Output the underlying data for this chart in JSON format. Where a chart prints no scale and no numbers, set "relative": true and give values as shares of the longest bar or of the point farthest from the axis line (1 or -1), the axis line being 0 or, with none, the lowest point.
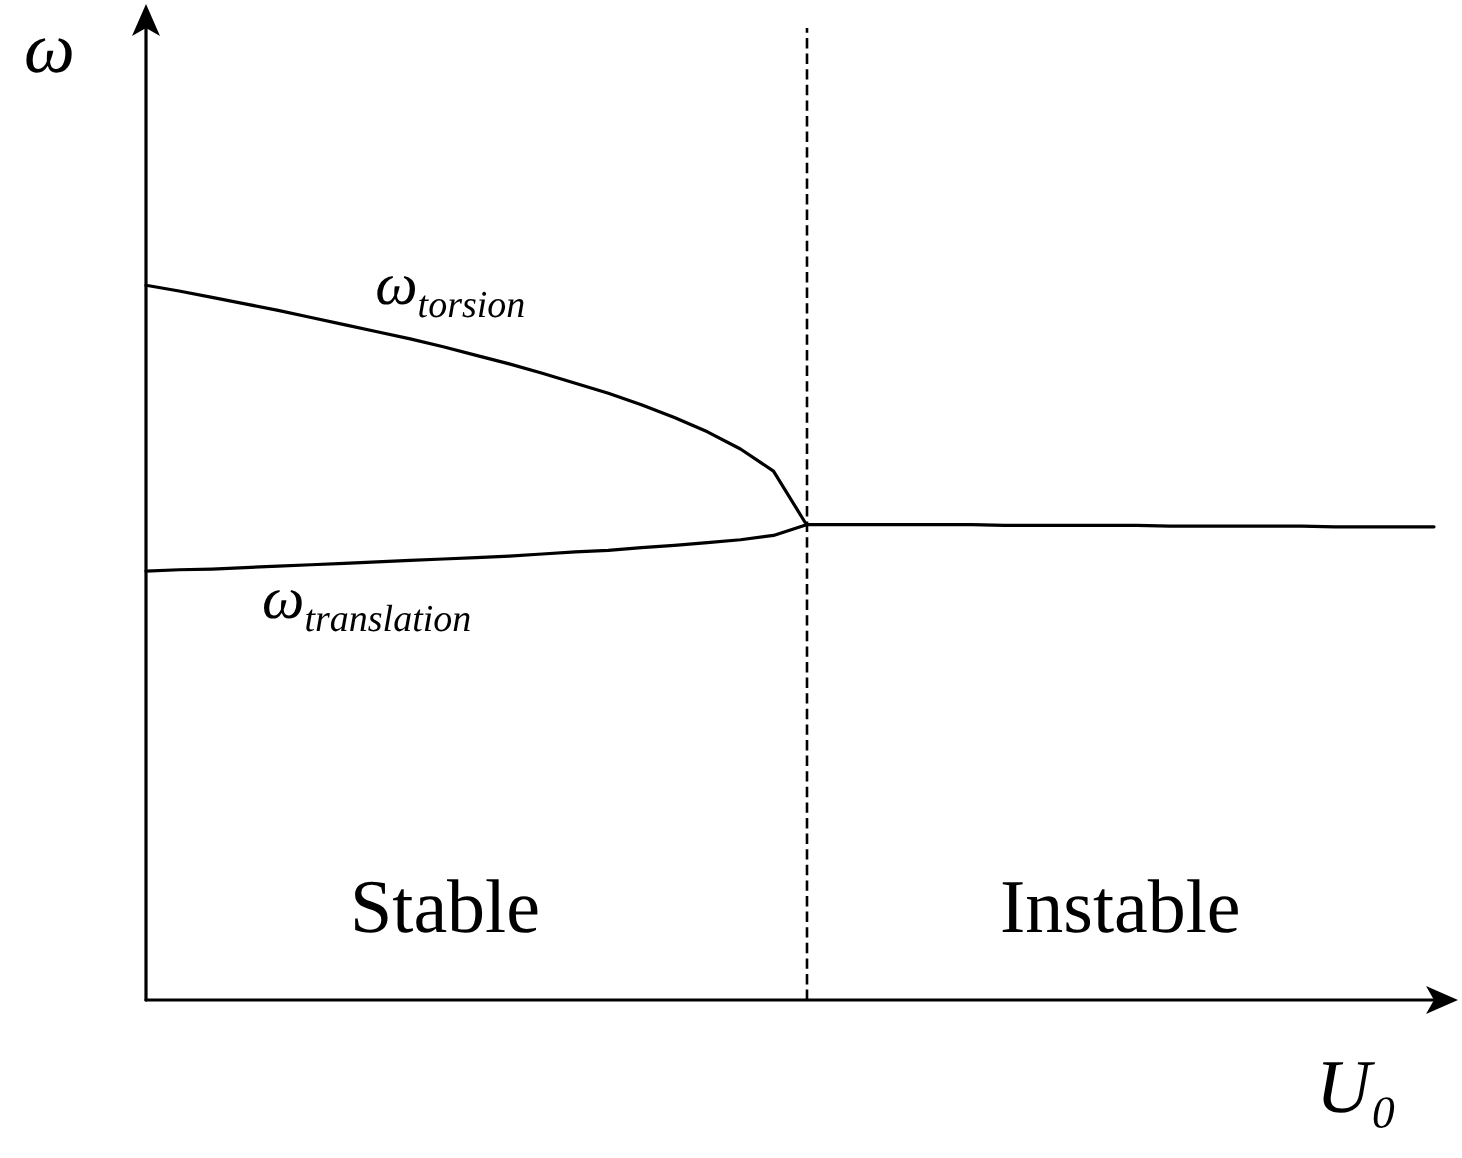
{
  "chart_data": {
    "type": "line",
    "relative": true,
    "xlabel": "U₀",
    "ylabel": "ω",
    "categories": [
      null,
      null,
      null,
      null,
      null,
      null,
      null,
      null,
      null,
      null,
      null,
      null,
      null,
      null,
      null,
      null,
      null,
      null,
      null,
      null,
      null,
      null,
      null,
      null,
      null,
      null,
      null,
      null,
      null,
      null,
      null,
      null,
      null,
      null,
      null,
      null,
      null,
      null,
      null,
      null
    ],
    "series": [
      {
        "name": "ω$_{torsion}$",
        "color": "#000000",
        "values": [
          1.0,
          0.992,
          0.983,
          0.974,
          0.965,
          0.955,
          0.945,
          0.935,
          0.925,
          0.914,
          0.902,
          0.89,
          0.877,
          0.863,
          0.849,
          0.833,
          0.815,
          0.795,
          0.771,
          0.74,
          0.665,
          null,
          null,
          null,
          null,
          null,
          null,
          null,
          null,
          null,
          null,
          null,
          null,
          null,
          null,
          null,
          null,
          null,
          null,
          null
        ]
      },
      {
        "name": "ω$_{translation}$",
        "color": "#000000",
        "values": [
          0.6,
          0.602,
          0.603,
          0.605,
          0.607,
          0.609,
          0.611,
          0.613,
          0.615,
          0.617,
          0.619,
          0.621,
          0.624,
          0.627,
          0.629,
          0.633,
          0.636,
          0.64,
          0.644,
          0.65,
          0.665,
          0.665,
          0.665,
          0.665,
          0.665,
          0.665,
          0.664,
          0.664,
          0.664,
          0.664,
          0.664,
          0.663,
          0.663,
          0.663,
          0.663,
          0.663,
          0.662,
          0.662,
          0.662,
          0.662
        ]
      }
    ],
    "annotations": [
      "Stable",
      "Instable"
    ],
    "legend": false,
    "grid": false,
    "marker": "none",
    "line_style": "solid"
  }
}
